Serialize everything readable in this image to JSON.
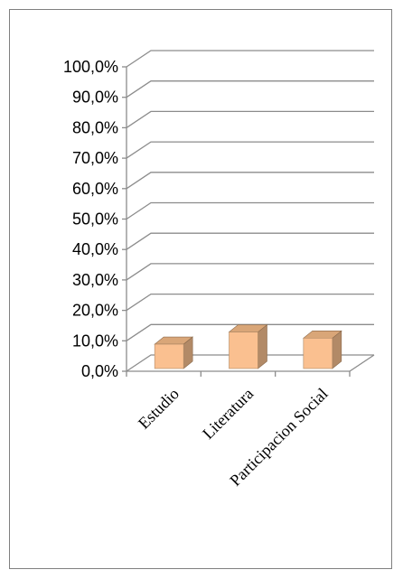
{
  "chart_data": {
    "type": "bar",
    "categories": [
      "Estudio",
      "Literatura",
      "Participacion Social"
    ],
    "values": [
      8.0,
      12.0,
      10.0
    ],
    "y_ticks": [
      "0,0%",
      "10,0%",
      "20,0%",
      "30,0%",
      "40,0%",
      "50,0%",
      "60,0%",
      "70,0%",
      "80,0%",
      "90,0%",
      "100,0%"
    ],
    "ylim": [
      0,
      100
    ],
    "grid": true,
    "style": "3d-column",
    "colors": {
      "bar_front": "#fac090",
      "bar_side": "#b28a67",
      "bar_top": "#d9a678",
      "grid": "#8c8c8c",
      "frame": "#7f7f7f"
    }
  }
}
